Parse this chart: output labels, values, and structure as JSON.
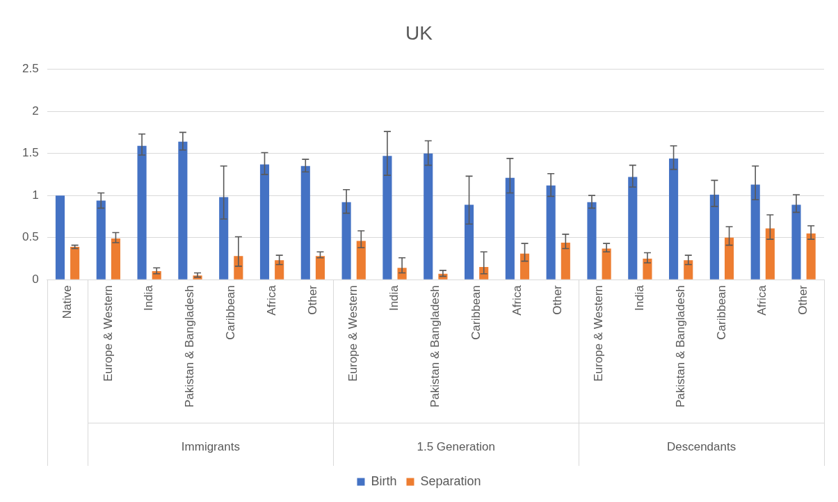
{
  "chart_data": {
    "type": "bar",
    "title": "UK",
    "categories": [
      "Native",
      "Europe & Western",
      "India",
      "Pakistan & Bangladesh",
      "Caribbean",
      "Africa",
      "Other",
      "Europe & Western",
      "India",
      "Pakistan & Bangladesh",
      "Caribbean",
      "Africa",
      "Other",
      "Europe & Western",
      "India",
      "Pakistan & Bangladesh",
      "Caribbean",
      "Africa",
      "Other"
    ],
    "series": [
      {
        "name": "Birth",
        "color": "#4472c4",
        "values": [
          1.0,
          0.94,
          1.59,
          1.64,
          0.98,
          1.37,
          1.35,
          0.92,
          1.47,
          1.5,
          0.89,
          1.21,
          1.12,
          0.92,
          1.22,
          1.44,
          1.01,
          1.13,
          0.89
        ],
        "errors": [
          null,
          [
            0.85,
            1.03
          ],
          [
            1.48,
            1.73
          ],
          [
            1.54,
            1.75
          ],
          [
            0.72,
            1.35
          ],
          [
            1.25,
            1.51
          ],
          [
            1.28,
            1.43
          ],
          [
            0.79,
            1.07
          ],
          [
            1.24,
            1.76
          ],
          [
            1.36,
            1.65
          ],
          [
            0.66,
            1.23
          ],
          [
            1.03,
            1.44
          ],
          [
            0.99,
            1.26
          ],
          [
            0.85,
            1.0
          ],
          [
            1.1,
            1.36
          ],
          [
            1.31,
            1.59
          ],
          [
            0.87,
            1.18
          ],
          [
            0.95,
            1.35
          ],
          [
            0.8,
            1.01
          ]
        ]
      },
      {
        "name": "Separation",
        "color": "#ed7d31",
        "values": [
          0.39,
          0.49,
          0.1,
          0.05,
          0.28,
          0.23,
          0.28,
          0.46,
          0.14,
          0.07,
          0.15,
          0.31,
          0.44,
          0.37,
          0.25,
          0.23,
          0.5,
          0.61,
          0.55
        ],
        "errors": [
          [
            0.37,
            0.41
          ],
          [
            0.44,
            0.56
          ],
          [
            0.07,
            0.14
          ],
          [
            0.03,
            0.08
          ],
          [
            0.16,
            0.51
          ],
          [
            0.18,
            0.29
          ],
          [
            0.26,
            0.33
          ],
          [
            0.38,
            0.58
          ],
          [
            0.08,
            0.26
          ],
          [
            0.04,
            0.11
          ],
          [
            0.07,
            0.33
          ],
          [
            0.22,
            0.43
          ],
          [
            0.37,
            0.54
          ],
          [
            0.33,
            0.43
          ],
          [
            0.2,
            0.32
          ],
          [
            0.18,
            0.29
          ],
          [
            0.41,
            0.63
          ],
          [
            0.48,
            0.77
          ],
          [
            0.48,
            0.64
          ]
        ]
      }
    ],
    "ylim": [
      0,
      2.5
    ],
    "yticks": [
      0,
      0.5,
      1,
      1.5,
      2,
      2.5
    ],
    "grid": "y",
    "legend": "bottom",
    "annotations": [
      "Immigrants",
      "1.5 Generation",
      "Descendants"
    ]
  }
}
